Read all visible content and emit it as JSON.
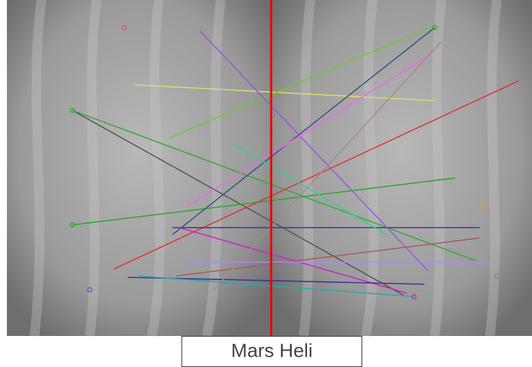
{
  "caption": "Mars Heli"
}
